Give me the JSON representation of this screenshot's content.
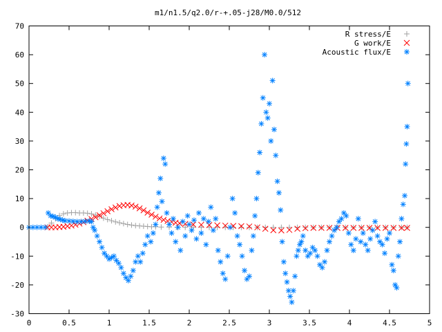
{
  "chart_data": {
    "type": "scatter",
    "title": "m1/n1.5/q2.0/r-+.05-j28/M0.0/512",
    "xlabel": "",
    "ylabel": "",
    "xlim": [
      0,
      5
    ],
    "ylim": [
      -30,
      70
    ],
    "x_ticks": [
      0,
      0.5,
      1,
      1.5,
      2,
      2.5,
      3,
      3.5,
      4,
      4.5,
      5
    ],
    "x_tick_labels": [
      "0",
      "0.5",
      "1",
      "1.5",
      "2",
      "2.5",
      "3",
      "3.5",
      "4",
      "4.5",
      "5"
    ],
    "y_ticks": [
      -30,
      -20,
      -10,
      0,
      10,
      20,
      30,
      40,
      50,
      60,
      70
    ],
    "y_tick_labels": [
      "-30",
      "-20",
      "-10",
      "0",
      "10",
      "20",
      "30",
      "40",
      "50",
      "60",
      "70"
    ],
    "legend_position": "top-right",
    "series": [
      {
        "name": "R stress/E",
        "marker": "plus",
        "color": "#a0a0a0",
        "points": [
          [
            0.23,
            0.2
          ],
          [
            0.28,
            1.5
          ],
          [
            0.33,
            3.0
          ],
          [
            0.38,
            4.1
          ],
          [
            0.43,
            4.7
          ],
          [
            0.48,
            5.0
          ],
          [
            0.53,
            5.1
          ],
          [
            0.58,
            5.1
          ],
          [
            0.63,
            5.0
          ],
          [
            0.68,
            5.0
          ],
          [
            0.73,
            4.9
          ],
          [
            0.78,
            4.7
          ],
          [
            0.83,
            4.3
          ],
          [
            0.88,
            3.8
          ],
          [
            0.93,
            3.2
          ],
          [
            0.98,
            2.7
          ],
          [
            1.03,
            2.3
          ],
          [
            1.08,
            1.9
          ],
          [
            1.13,
            1.6
          ],
          [
            1.18,
            1.3
          ],
          [
            1.23,
            1.0
          ],
          [
            1.28,
            0.8
          ],
          [
            1.33,
            0.6
          ],
          [
            1.38,
            0.5
          ],
          [
            1.43,
            0.4
          ],
          [
            1.48,
            0.3
          ],
          [
            1.53,
            0.2
          ],
          [
            1.58,
            0.2
          ],
          [
            1.65,
            0.1
          ],
          [
            1.75,
            0.1
          ],
          [
            1.85,
            0.05
          ],
          [
            1.95,
            0.0
          ],
          [
            2.05,
            0.0
          ],
          [
            2.15,
            0.0
          ],
          [
            2.25,
            0.0
          ],
          [
            2.35,
            0.0
          ],
          [
            2.45,
            0.0
          ],
          [
            2.55,
            0.0
          ],
          [
            2.65,
            0.0
          ],
          [
            2.75,
            0.0
          ],
          [
            2.85,
            0.0
          ],
          [
            2.95,
            0.0
          ],
          [
            3.05,
            0.0
          ],
          [
            3.15,
            0.0
          ],
          [
            3.25,
            0.0
          ],
          [
            3.35,
            0.0
          ],
          [
            3.45,
            0.0
          ],
          [
            3.55,
            0.0
          ],
          [
            3.65,
            0.0
          ],
          [
            3.75,
            0.0
          ],
          [
            3.85,
            0.0
          ],
          [
            3.95,
            0.0
          ],
          [
            4.05,
            0.0
          ],
          [
            4.15,
            0.0
          ],
          [
            4.25,
            0.0
          ],
          [
            4.35,
            0.0
          ],
          [
            4.45,
            0.0
          ],
          [
            4.55,
            0.0
          ],
          [
            4.65,
            0.0
          ],
          [
            4.72,
            0.0
          ]
        ]
      },
      {
        "name": "G work/E",
        "marker": "cross",
        "color": "#ff0000",
        "points": [
          [
            0.23,
            0.0
          ],
          [
            0.28,
            0.0
          ],
          [
            0.33,
            0.0
          ],
          [
            0.38,
            0.1
          ],
          [
            0.43,
            0.2
          ],
          [
            0.48,
            0.4
          ],
          [
            0.53,
            0.6
          ],
          [
            0.58,
            0.9
          ],
          [
            0.63,
            1.3
          ],
          [
            0.68,
            1.8
          ],
          [
            0.73,
            2.3
          ],
          [
            0.78,
            2.9
          ],
          [
            0.83,
            3.5
          ],
          [
            0.88,
            4.2
          ],
          [
            0.93,
            4.9
          ],
          [
            0.98,
            5.6
          ],
          [
            1.03,
            6.3
          ],
          [
            1.08,
            6.9
          ],
          [
            1.13,
            7.4
          ],
          [
            1.18,
            7.7
          ],
          [
            1.23,
            7.8
          ],
          [
            1.28,
            7.6
          ],
          [
            1.33,
            7.2
          ],
          [
            1.38,
            6.6
          ],
          [
            1.43,
            5.9
          ],
          [
            1.48,
            5.1
          ],
          [
            1.53,
            4.4
          ],
          [
            1.58,
            3.7
          ],
          [
            1.63,
            3.1
          ],
          [
            1.68,
            2.6
          ],
          [
            1.73,
            2.2
          ],
          [
            1.78,
            1.9
          ],
          [
            1.83,
            1.6
          ],
          [
            1.88,
            1.4
          ],
          [
            1.95,
            1.2
          ],
          [
            2.05,
            1.0
          ],
          [
            2.15,
            0.9
          ],
          [
            2.25,
            0.8
          ],
          [
            2.35,
            0.7
          ],
          [
            2.45,
            0.6
          ],
          [
            2.55,
            0.5
          ],
          [
            2.65,
            0.4
          ],
          [
            2.75,
            0.3
          ],
          [
            2.85,
            0.0
          ],
          [
            2.95,
            -0.5
          ],
          [
            3.05,
            -1.0
          ],
          [
            3.15,
            -1.1
          ],
          [
            3.25,
            -0.9
          ],
          [
            3.35,
            -0.5
          ],
          [
            3.45,
            -0.3
          ],
          [
            3.55,
            -0.2
          ],
          [
            3.65,
            -0.2
          ],
          [
            3.75,
            -0.2
          ],
          [
            3.85,
            -0.2
          ],
          [
            3.95,
            -0.2
          ],
          [
            4.05,
            -0.2
          ],
          [
            4.15,
            -0.2
          ],
          [
            4.25,
            -0.2
          ],
          [
            4.35,
            -0.2
          ],
          [
            4.45,
            -0.2
          ],
          [
            4.55,
            -0.2
          ],
          [
            4.65,
            -0.2
          ],
          [
            4.72,
            -0.2
          ]
        ]
      },
      {
        "name": "Acoustic flux/E",
        "marker": "star",
        "color": "#0080ff",
        "points": [
          [
            0.0,
            0.0
          ],
          [
            0.05,
            0.0
          ],
          [
            0.1,
            0.0
          ],
          [
            0.15,
            0.0
          ],
          [
            0.2,
            0.0
          ],
          [
            0.24,
            5.0
          ],
          [
            0.27,
            4.0
          ],
          [
            0.3,
            3.8
          ],
          [
            0.33,
            3.5
          ],
          [
            0.36,
            3.0
          ],
          [
            0.39,
            2.8
          ],
          [
            0.42,
            2.5
          ],
          [
            0.45,
            2.3
          ],
          [
            0.5,
            2.2
          ],
          [
            0.55,
            2.1
          ],
          [
            0.6,
            2.0
          ],
          [
            0.65,
            2.0
          ],
          [
            0.7,
            2.1
          ],
          [
            0.75,
            2.2
          ],
          [
            0.78,
            2.0
          ],
          [
            0.8,
            0.0
          ],
          [
            0.82,
            -1.0
          ],
          [
            0.85,
            -3.0
          ],
          [
            0.88,
            -5.0
          ],
          [
            0.91,
            -7.0
          ],
          [
            0.94,
            -9.0
          ],
          [
            0.97,
            -10.0
          ],
          [
            1.0,
            -11.0
          ],
          [
            1.03,
            -10.5
          ],
          [
            1.06,
            -10.0
          ],
          [
            1.09,
            -11.5
          ],
          [
            1.12,
            -12.5
          ],
          [
            1.15,
            -14.0
          ],
          [
            1.18,
            -16.0
          ],
          [
            1.21,
            -17.5
          ],
          [
            1.24,
            -18.5
          ],
          [
            1.27,
            -17.0
          ],
          [
            1.3,
            -15.0
          ],
          [
            1.33,
            -12.0
          ],
          [
            1.36,
            -10.0
          ],
          [
            1.39,
            -12.0
          ],
          [
            1.42,
            -9.0
          ],
          [
            1.45,
            -6.0
          ],
          [
            1.48,
            -3.0
          ],
          [
            1.52,
            -5.0
          ],
          [
            1.55,
            -2.0
          ],
          [
            1.58,
            1.0
          ],
          [
            1.6,
            7.0
          ],
          [
            1.62,
            12.0
          ],
          [
            1.64,
            17.0
          ],
          [
            1.66,
            9.0
          ],
          [
            1.68,
            24.0
          ],
          [
            1.7,
            22.0
          ],
          [
            1.72,
            5.0
          ],
          [
            1.75,
            1.0
          ],
          [
            1.78,
            -2.0
          ],
          [
            1.8,
            3.0
          ],
          [
            1.83,
            -5.0
          ],
          [
            1.86,
            0.0
          ],
          [
            1.89,
            -8.0
          ],
          [
            1.92,
            2.0
          ],
          [
            1.95,
            -3.0
          ],
          [
            1.98,
            4.0
          ],
          [
            2.0,
            1.0
          ],
          [
            2.03,
            -1.0
          ],
          [
            2.06,
            2.5
          ],
          [
            2.09,
            -4.0
          ],
          [
            2.12,
            5.0
          ],
          [
            2.15,
            -2.0
          ],
          [
            2.18,
            3.0
          ],
          [
            2.21,
            -6.0
          ],
          [
            2.24,
            2.0
          ],
          [
            2.27,
            7.0
          ],
          [
            2.3,
            -1.0
          ],
          [
            2.33,
            3.0
          ],
          [
            2.36,
            -8.0
          ],
          [
            2.39,
            -12.0
          ],
          [
            2.42,
            -16.0
          ],
          [
            2.45,
            -18.0
          ],
          [
            2.48,
            -10.0
          ],
          [
            2.51,
            0.0
          ],
          [
            2.54,
            10.0
          ],
          [
            2.57,
            5.0
          ],
          [
            2.6,
            -3.0
          ],
          [
            2.63,
            -6.0
          ],
          [
            2.66,
            -10.0
          ],
          [
            2.69,
            -15.0
          ],
          [
            2.72,
            -18.0
          ],
          [
            2.75,
            -17.0
          ],
          [
            2.78,
            -8.0
          ],
          [
            2.8,
            -3.0
          ],
          [
            2.82,
            4.0
          ],
          [
            2.84,
            10.0
          ],
          [
            2.86,
            19.0
          ],
          [
            2.88,
            26.0
          ],
          [
            2.9,
            36.0
          ],
          [
            2.92,
            45.0
          ],
          [
            2.94,
            60.0
          ],
          [
            2.96,
            40.0
          ],
          [
            2.98,
            38.0
          ],
          [
            3.0,
            43.0
          ],
          [
            3.02,
            30.0
          ],
          [
            3.04,
            51.0
          ],
          [
            3.06,
            34.0
          ],
          [
            3.08,
            25.0
          ],
          [
            3.1,
            16.0
          ],
          [
            3.12,
            12.0
          ],
          [
            3.14,
            6.0
          ],
          [
            3.16,
            -5.0
          ],
          [
            3.18,
            -12.0
          ],
          [
            3.2,
            -16.0
          ],
          [
            3.22,
            -19.0
          ],
          [
            3.24,
            -22.0
          ],
          [
            3.26,
            -24.0
          ],
          [
            3.28,
            -26.0
          ],
          [
            3.3,
            -22.0
          ],
          [
            3.32,
            -17.0
          ],
          [
            3.34,
            -10.0
          ],
          [
            3.36,
            -8.0
          ],
          [
            3.38,
            -6.0
          ],
          [
            3.4,
            -5.0
          ],
          [
            3.42,
            -3.0
          ],
          [
            3.45,
            -8.0
          ],
          [
            3.48,
            -10.0
          ],
          [
            3.51,
            -9.0
          ],
          [
            3.54,
            -7.0
          ],
          [
            3.57,
            -8.0
          ],
          [
            3.6,
            -10.0
          ],
          [
            3.63,
            -13.0
          ],
          [
            3.66,
            -14.0
          ],
          [
            3.69,
            -12.0
          ],
          [
            3.72,
            -8.0
          ],
          [
            3.75,
            -5.0
          ],
          [
            3.78,
            -3.0
          ],
          [
            3.81,
            -1.0
          ],
          [
            3.84,
            0.0
          ],
          [
            3.87,
            2.0
          ],
          [
            3.9,
            3.0
          ],
          [
            3.93,
            5.0
          ],
          [
            3.96,
            4.0
          ],
          [
            3.99,
            -2.0
          ],
          [
            4.02,
            -6.0
          ],
          [
            4.05,
            -8.0
          ],
          [
            4.08,
            -4.0
          ],
          [
            4.11,
            3.0
          ],
          [
            4.14,
            -5.0
          ],
          [
            4.17,
            -2.0
          ],
          [
            4.2,
            -6.0
          ],
          [
            4.23,
            -8.0
          ],
          [
            4.26,
            -4.0
          ],
          [
            4.29,
            -1.0
          ],
          [
            4.32,
            2.0
          ],
          [
            4.35,
            -3.0
          ],
          [
            4.38,
            -5.0
          ],
          [
            4.41,
            -6.0
          ],
          [
            4.44,
            -9.0
          ],
          [
            4.47,
            -4.0
          ],
          [
            4.5,
            -2.0
          ],
          [
            4.53,
            -13.0
          ],
          [
            4.55,
            -15.0
          ],
          [
            4.57,
            -20.0
          ],
          [
            4.59,
            -21.0
          ],
          [
            4.61,
            -10.0
          ],
          [
            4.63,
            -5.0
          ],
          [
            4.65,
            3.0
          ],
          [
            4.67,
            8.0
          ],
          [
            4.69,
            11.0
          ],
          [
            4.7,
            22.0
          ],
          [
            4.71,
            29.0
          ],
          [
            4.72,
            35.0
          ],
          [
            4.73,
            50.0
          ]
        ]
      }
    ]
  }
}
